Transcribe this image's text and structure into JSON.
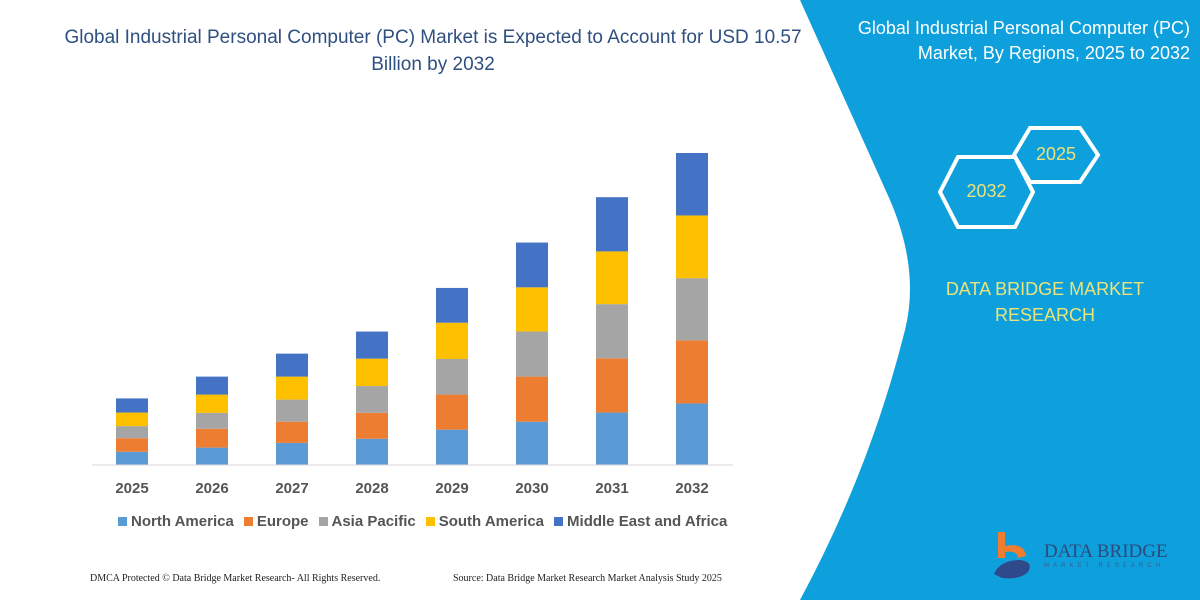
{
  "title": "Global Industrial Personal Computer (PC) Market is Expected to Account for USD 10.57 Billion by 2032",
  "side_panel": {
    "title": "Global Industrial Personal Computer (PC) Market, By Regions, 2025 to 2032",
    "hex_labels": [
      "2025",
      "2032"
    ],
    "brand_text": "DATA BRIDGE MARKET RESEARCH",
    "logo_text": "DATA BRIDGE",
    "logo_subtext": "MARKET RESEARCH",
    "panel_color": "#0ea0dc"
  },
  "footer": {
    "left": "DMCA Protected © Data Bridge Market Research-  All Rights Reserved.",
    "right": "Source: Data Bridge Market Research  Market Analysis Study 2025"
  },
  "chart_data": {
    "type": "bar",
    "stacked": true,
    "categories": [
      "2025",
      "2026",
      "2027",
      "2028",
      "2029",
      "2030",
      "2031",
      "2032"
    ],
    "series": [
      {
        "name": "North America",
        "color": "#5b9bd5",
        "values": [
          0.45,
          0.59,
          0.75,
          0.89,
          1.2,
          1.47,
          1.78,
          2.09
        ]
      },
      {
        "name": "Europe",
        "color": "#ed7d31",
        "values": [
          0.46,
          0.64,
          0.72,
          0.88,
          1.19,
          1.53,
          1.84,
          2.14
        ]
      },
      {
        "name": "Asia Pacific",
        "color": "#a5a5a5",
        "values": [
          0.41,
          0.54,
          0.75,
          0.91,
          1.21,
          1.53,
          1.84,
          2.11
        ]
      },
      {
        "name": "South America",
        "color": "#ffc000",
        "values": [
          0.46,
          0.62,
          0.78,
          0.93,
          1.23,
          1.5,
          1.79,
          2.13
        ]
      },
      {
        "name": "Middle East and Africa",
        "color": "#4472c4",
        "values": [
          0.48,
          0.61,
          0.78,
          0.92,
          1.18,
          1.52,
          1.84,
          2.12
        ]
      }
    ],
    "ylim": [
      0,
      10.6
    ],
    "y_axis_shown": false,
    "grid": false,
    "legend_position": "bottom"
  }
}
